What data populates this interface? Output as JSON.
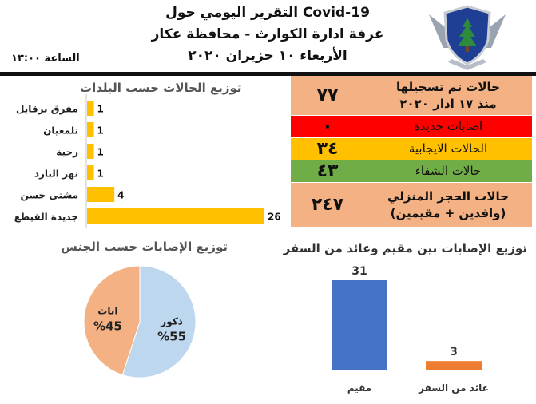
{
  "header": {
    "line1": "التقرير اليومي حول Covid-19",
    "line2": "غرفة ادارة الكوارث - محافظة عكار",
    "line3": "الأربعاء ١٠ حزيران ٢٠٢٠",
    "time": "الساعة ١٣:٠٠"
  },
  "stats": [
    {
      "value": "٧٧",
      "label_lines": [
        "حالات تم تسجيلها",
        "منذ ١٧ اذار ٢٠٢٠"
      ],
      "bg": "#F4B183"
    },
    {
      "value": "٠",
      "label_lines": [
        "اصابات جديدة"
      ],
      "bg": "#FF0000"
    },
    {
      "value": "٣٤",
      "label_lines": [
        "الحالات الايجابية"
      ],
      "bg": "#FFC000"
    },
    {
      "value": "٤٣",
      "label_lines": [
        "حالات الشفاء"
      ],
      "bg": "#70AD47"
    },
    {
      "value": "٢٤٧",
      "label_lines": [
        "حالات الحجر المنزلي",
        "(وافدين + مقيمين)"
      ],
      "bg": "#F4B183"
    }
  ],
  "chart_data": [
    {
      "type": "bar",
      "orientation": "horizontal",
      "title": "توزيع الحالات حسب البلدات",
      "categories": [
        "مفرق برقايل",
        "تلمعيان",
        "رحبة",
        "نهر البارد",
        "مشتى حسن",
        "جديدة القيطع"
      ],
      "values": [
        1,
        1,
        1,
        1,
        4,
        26
      ],
      "color": "#FFC000"
    },
    {
      "type": "pie",
      "title": "توزيع الإصابات حسب الجنس",
      "categories": [
        "ذكور",
        "اناث"
      ],
      "values": [
        55,
        45
      ],
      "value_labels": [
        "%55",
        "%45"
      ],
      "colors": [
        "#BDD7EE",
        "#F4B183"
      ]
    },
    {
      "type": "bar",
      "title": "توزيع الإصابات بين مقيم وعائد من السفر",
      "categories": [
        "مقيم",
        "عائد من السفر"
      ],
      "values": [
        31,
        3
      ],
      "colors": [
        "#4472C4",
        "#ED7D31"
      ]
    }
  ]
}
